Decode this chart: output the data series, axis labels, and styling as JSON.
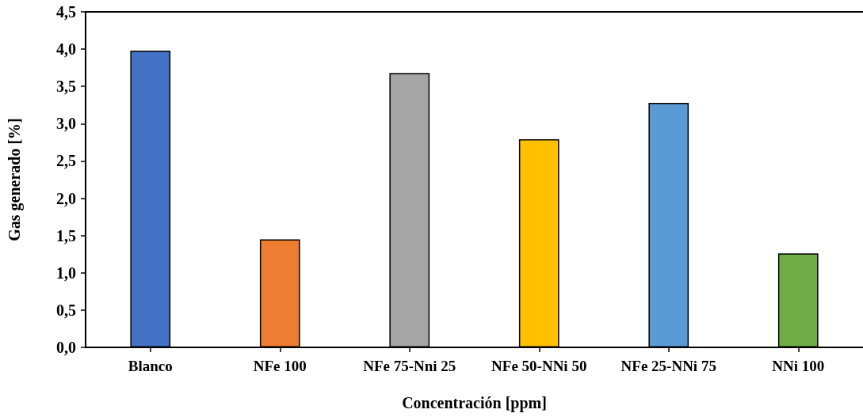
{
  "chart_data": {
    "type": "bar",
    "xlabel": "Concentración [ppm]",
    "ylabel": "Gas generado [%]",
    "categories": [
      "Blanco",
      "NFe 100",
      "NFe 75-Nni 25",
      "NFe 50-NNi 50",
      "NFe 25-NNi 75",
      "NNi 100"
    ],
    "values": [
      3.98,
      1.45,
      3.68,
      2.79,
      3.28,
      1.26
    ],
    "colors": [
      "#4472c4",
      "#ed7d31",
      "#a5a5a5",
      "#ffc000",
      "#5b9bd5",
      "#70ad47"
    ],
    "ylim": [
      0,
      4.5
    ],
    "yticks": [
      {
        "value": 0,
        "label": "0,0"
      },
      {
        "value": 0.5,
        "label": "0,5"
      },
      {
        "value": 1,
        "label": "1,0"
      },
      {
        "value": 1.5,
        "label": "1,5"
      },
      {
        "value": 2,
        "label": "2,0"
      },
      {
        "value": 2.5,
        "label": "2,5"
      },
      {
        "value": 3,
        "label": "3,0"
      },
      {
        "value": 3.5,
        "label": "3,5"
      },
      {
        "value": 4,
        "label": "4,0"
      },
      {
        "value": 4.5,
        "label": "4,5"
      }
    ],
    "grid": false
  }
}
